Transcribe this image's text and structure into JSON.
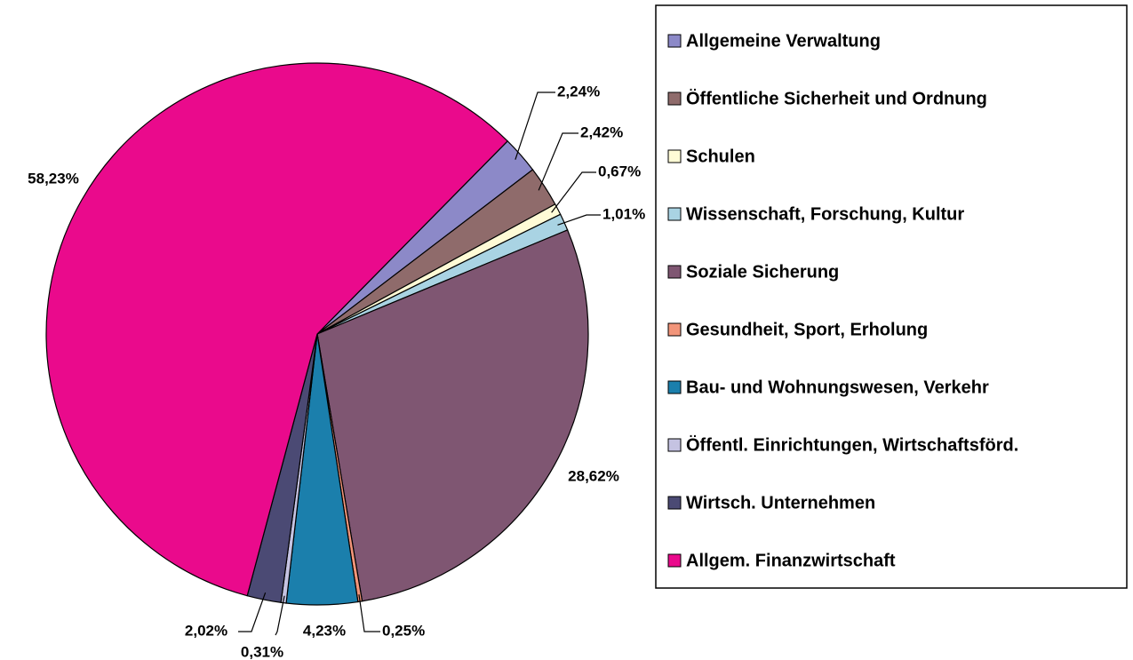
{
  "chart_data": {
    "type": "pie",
    "categories": [
      "Allgemeine Verwaltung",
      "Öffentliche Sicherheit und Ordnung",
      "Schulen",
      "Wissenschaft, Forschung, Kultur",
      "Soziale Sicherung",
      "Gesundheit, Sport, Erholung",
      "Bau- und Wohnungswesen, Verkehr",
      "Öffentl. Einrichtungen, Wirtschaftsförd.",
      "Wirtsch. Unternehmen",
      "Allgem. Finanzwirtschaft"
    ],
    "values": [
      2.24,
      2.42,
      0.67,
      1.01,
      28.62,
      0.25,
      4.23,
      0.31,
      2.02,
      58.23
    ],
    "value_labels": [
      "2,24%",
      "2,42%",
      "0,67%",
      "1,01%",
      "28,62%",
      "0,25%",
      "4,23%",
      "0,31%",
      "2,02%",
      "58,23%"
    ],
    "colors": [
      "#8c89c8",
      "#8f6b6b",
      "#fffbd6",
      "#a9d3e3",
      "#7f5672",
      "#f2957a",
      "#1b7fac",
      "#c5c3e2",
      "#4b4a74",
      "#ea0a8c"
    ],
    "legend": "right"
  }
}
